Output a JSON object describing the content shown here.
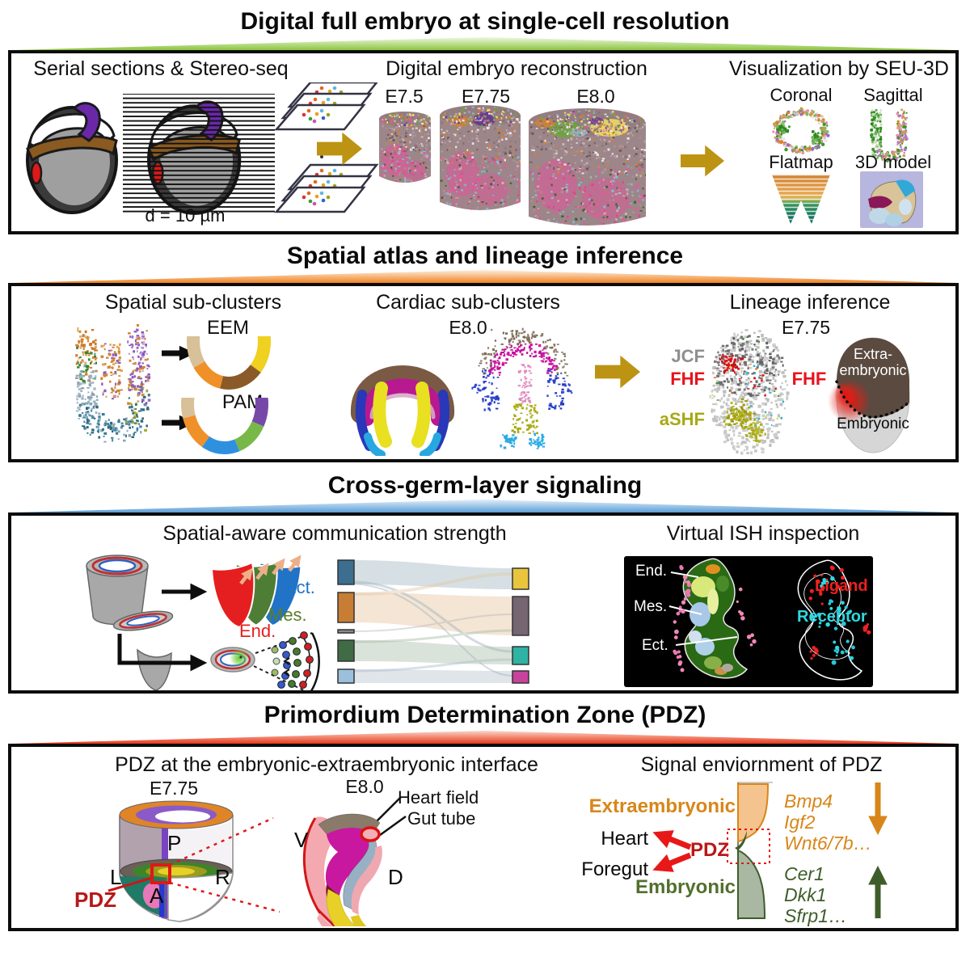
{
  "colors": {
    "gold_arrow": "#bd9313",
    "banner_green": "#8bc53f",
    "banner_orange": "#ef8322",
    "banner_blue": "#5b9fd6",
    "banner_red": "#e83a1d",
    "fhf_red": "#e8121c",
    "ashf_olive": "#a8a818",
    "jcf_gray": "#8f8f8f",
    "ect_blue": "#2173c8",
    "mes_green": "#5a7e28",
    "end_red": "#e51f1f",
    "ligand_red": "#f02020",
    "receptor_cyan": "#30d8e0",
    "extraembryonic_orange": "#d8861a",
    "embryonic_green": "#51702e",
    "pdz_red": "#b81818"
  },
  "s1": {
    "title": "Digital full embryo at single-cell resolution",
    "serial_header": "Serial sections & Stereo-seq",
    "section_thickness": "d = 10 µm",
    "recon_header": "Digital embryo reconstruction",
    "stages": [
      "E7.5",
      "E7.75",
      "E8.0"
    ],
    "viz_header": "Visualization by SEU-3D",
    "views": [
      "Coronal",
      "Sagittal",
      "Flatmap",
      "3D model"
    ]
  },
  "s2": {
    "title": "Spatial atlas and lineage inference",
    "spatial_header": "Spatial sub-clusters",
    "eem": "EEM",
    "pam": "PAM",
    "cardiac_header": "Cardiac sub-clusters",
    "cardiac_stage": "E8.0",
    "lineage_header": "Lineage inference",
    "lineage_stage": "E7.75",
    "jcf": "JCF",
    "fhf": "FHF",
    "ashf": "aSHF",
    "fhf2": "FHF",
    "extra_line1": "Extra-",
    "extra_line2": "embryonic",
    "embryonic": "Embryonic"
  },
  "s3": {
    "title": "Cross-germ-layer signaling",
    "comm_header": "Spatial-aware communication strength",
    "ect": "Ect.",
    "mes": "Mes.",
    "end": "End.",
    "ish_header": "Virtual ISH inspection",
    "ish_end": "End.",
    "ish_mes": "Mes.",
    "ish_ect": "Ect.",
    "ligand": "Ligand",
    "receptor": "Receptor"
  },
  "s4": {
    "title": "Primordium Determination Zone (PDZ)",
    "interface_header": "PDZ at the embryonic-extraembryonic interface",
    "stage_e775": "E7.75",
    "stage_e80": "E8.0",
    "axis_p": "P",
    "axis_l": "L",
    "axis_r": "R",
    "axis_a": "A",
    "axis_v": "V",
    "axis_d": "D",
    "pdz": "PDZ",
    "heart_field": "Heart field",
    "gut_tube": "Gut tube",
    "signal_header": "Signal enviornment of PDZ",
    "extraembryonic": "Extraembryonic",
    "embryonic": "Embryonic",
    "heart": "Heart",
    "foregut": "Foregut",
    "pdz2": "PDZ",
    "genes_extra": [
      "Bmp4",
      "Igf2",
      "Wnt6/7b…"
    ],
    "genes_embryonic": [
      "Cer1",
      "Dkk1",
      "Sfrp1…"
    ]
  }
}
